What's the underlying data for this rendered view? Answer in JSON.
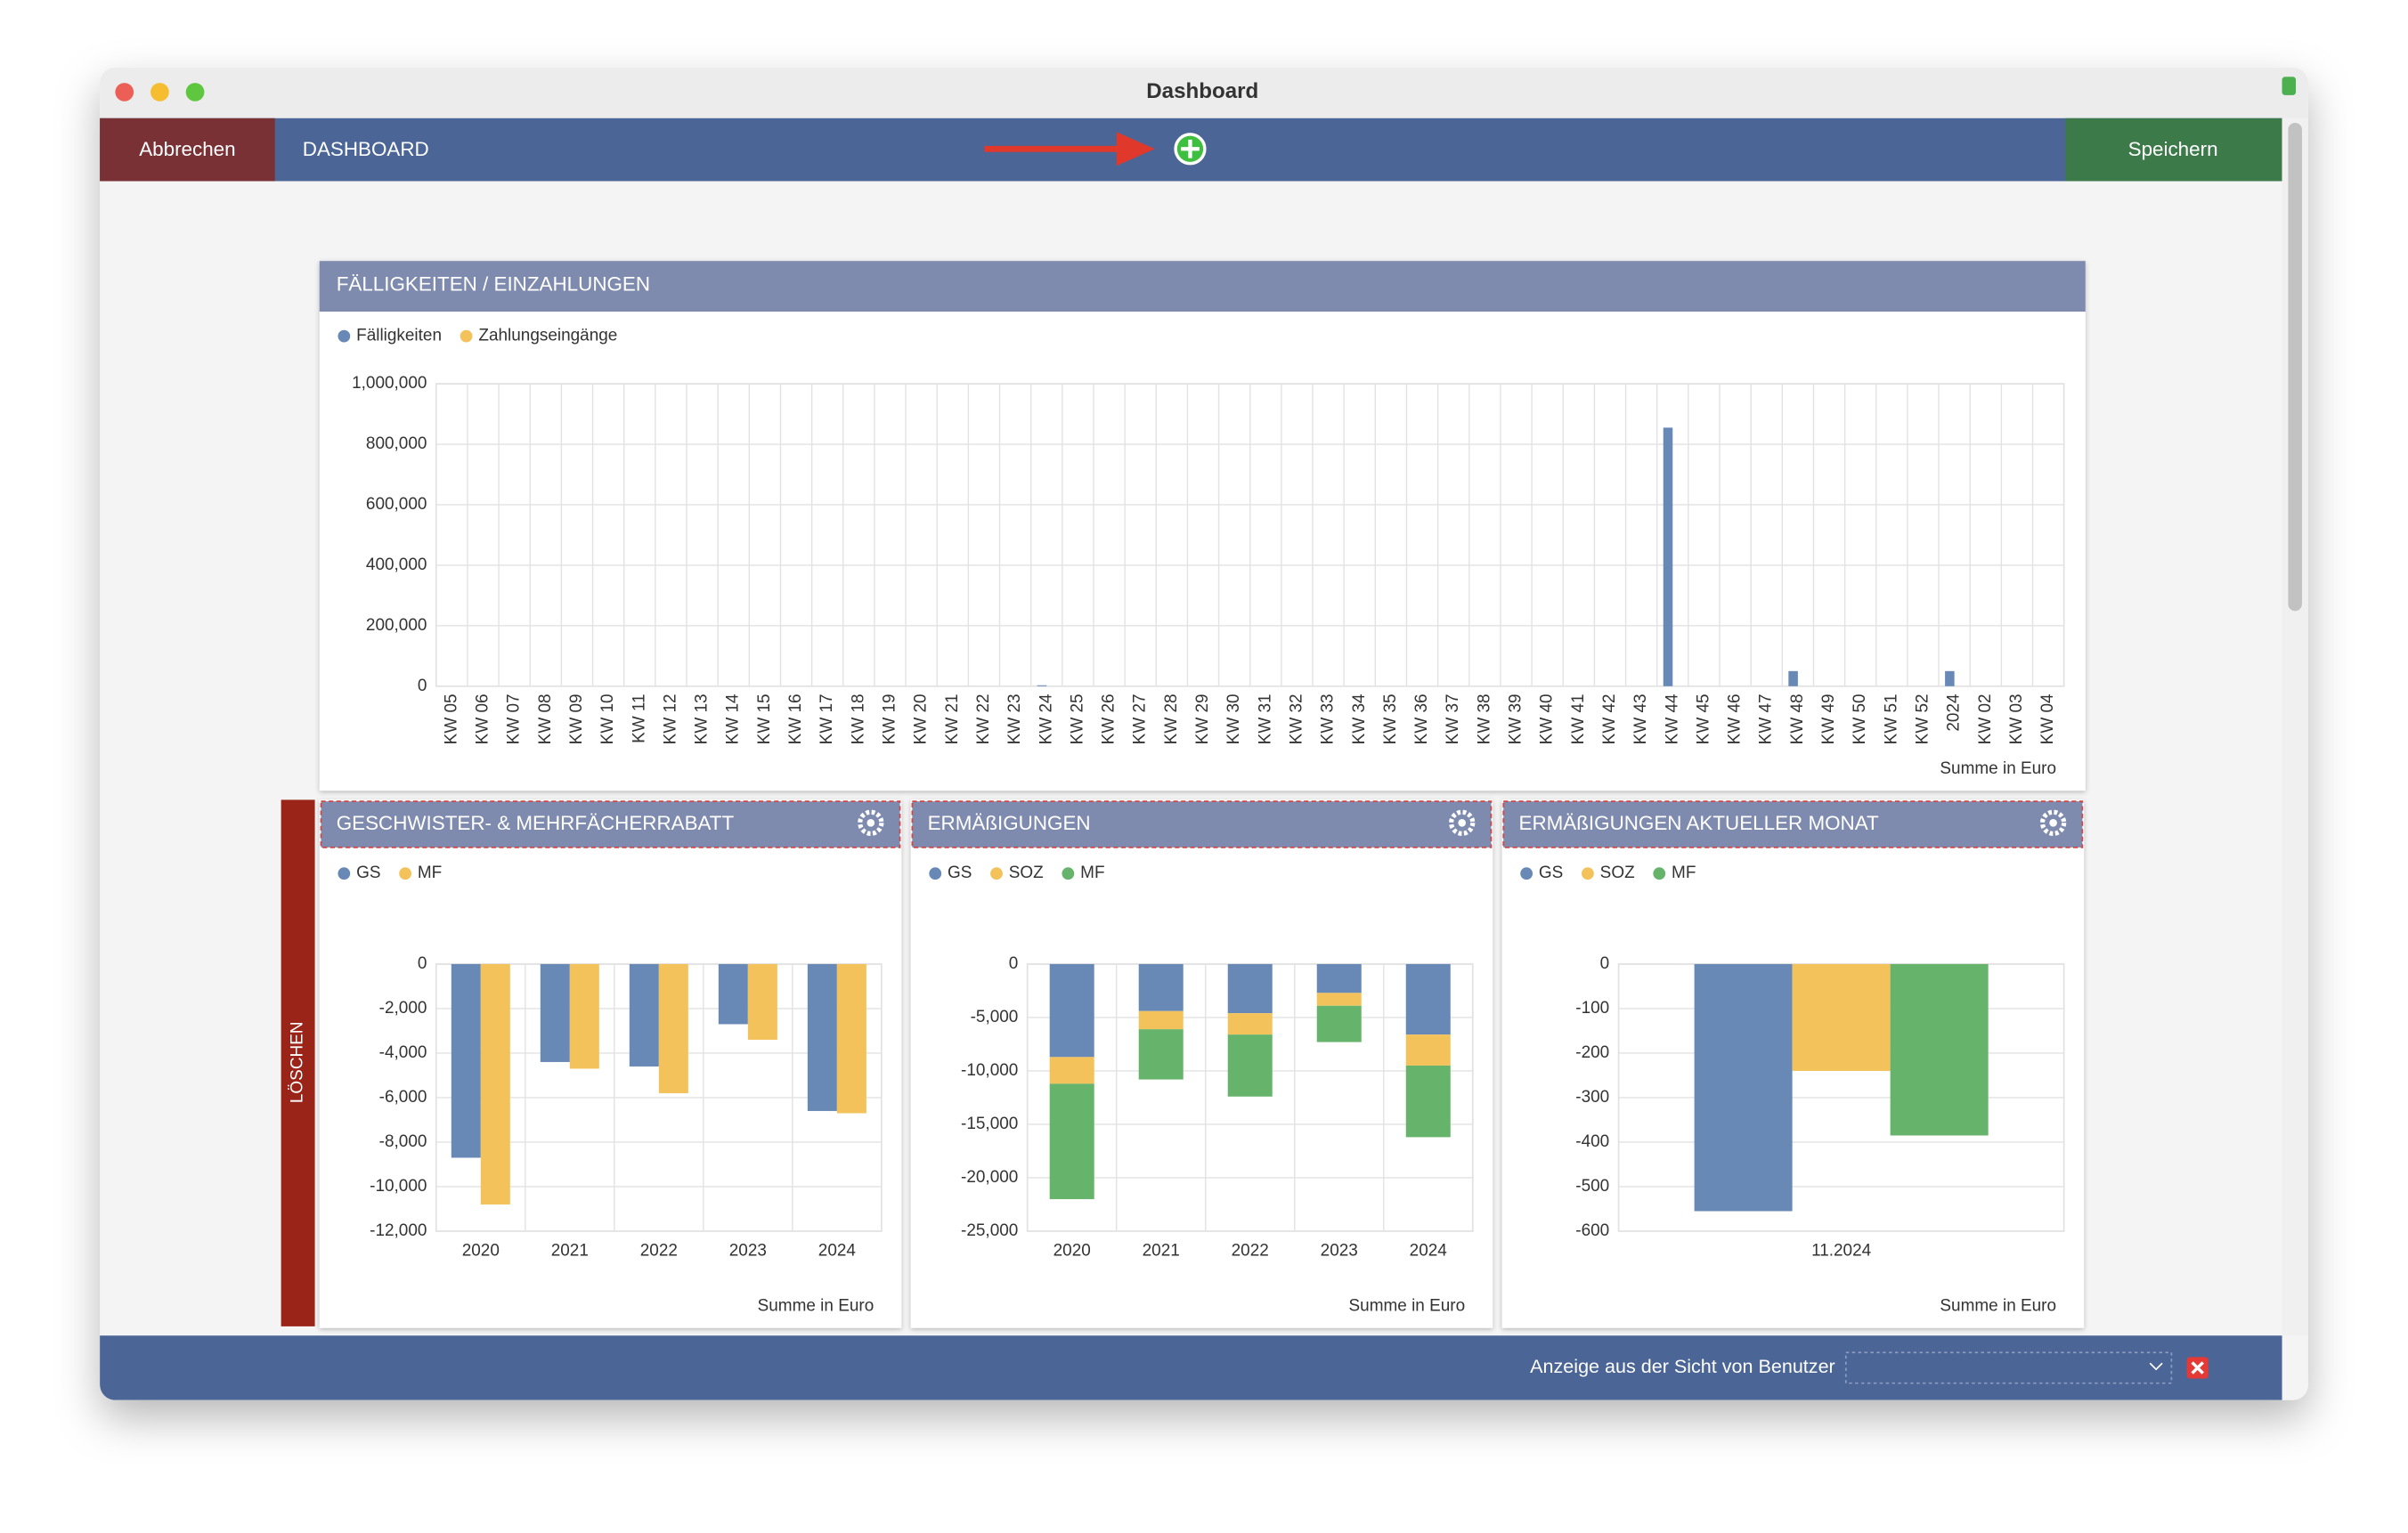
{
  "window": {
    "title": "Dashboard"
  },
  "toolbar": {
    "cancel": "Abbrechen",
    "section": "DASHBOARD",
    "save": "Speichern"
  },
  "delete_label": "LÖSCHEN",
  "footer": {
    "user_view": "Anzeige aus der Sicht von Benutzer"
  },
  "chart_data": [
    {
      "type": "bar",
      "title": "FÄLLIGKEITEN / EINZAHLUNGEN",
      "x_label": "Summe in Euro",
      "categories": [
        "KW 05",
        "KW 06",
        "KW 07",
        "KW 08",
        "KW 09",
        "KW 10",
        "KW 11",
        "KW 12",
        "KW 13",
        "KW 14",
        "KW 15",
        "KW 16",
        "KW 17",
        "KW 18",
        "KW 19",
        "KW 20",
        "KW 21",
        "KW 22",
        "KW 23",
        "KW 24",
        "KW 25",
        "KW 26",
        "KW 27",
        "KW 28",
        "KW 29",
        "KW 30",
        "KW 31",
        "KW 32",
        "KW 33",
        "KW 34",
        "KW 35",
        "KW 36",
        "KW 37",
        "KW 38",
        "KW 39",
        "KW 40",
        "KW 41",
        "KW 42",
        "KW 43",
        "KW 44",
        "KW 45",
        "KW 46",
        "KW 47",
        "KW 48",
        "KW 49",
        "KW 50",
        "KW 51",
        "KW 52",
        "2024",
        "KW 02",
        "KW 03",
        "KW 04"
      ],
      "series": [
        {
          "name": "Fälligkeiten",
          "color": "#6889b6",
          "values": [
            0,
            0,
            0,
            0,
            0,
            0,
            0,
            0,
            0,
            0,
            0,
            0,
            0,
            0,
            0,
            0,
            0,
            0,
            0,
            3000,
            0,
            0,
            0,
            0,
            0,
            0,
            0,
            0,
            0,
            0,
            0,
            0,
            0,
            0,
            0,
            0,
            0,
            0,
            0,
            855000,
            0,
            0,
            0,
            50000,
            0,
            0,
            0,
            0,
            50000,
            0,
            0,
            0
          ]
        },
        {
          "name": "Zahlungseingänge",
          "color": "#f3c25b",
          "values": [
            0,
            0,
            0,
            0,
            0,
            0,
            0,
            0,
            0,
            0,
            0,
            0,
            0,
            0,
            0,
            0,
            0,
            0,
            0,
            0,
            0,
            0,
            0,
            0,
            0,
            0,
            0,
            0,
            0,
            0,
            0,
            0,
            0,
            0,
            0,
            0,
            0,
            0,
            0,
            0,
            0,
            0,
            0,
            0,
            0,
            0,
            0,
            0,
            0,
            0,
            0,
            0
          ]
        }
      ],
      "ylim": [
        0,
        1000000
      ],
      "yticks": [
        0,
        {
          "value": 200000,
          "label": "200,000"
        },
        {
          "value": 400000,
          "label": "400,000"
        },
        {
          "value": 600000,
          "label": "600,000"
        },
        {
          "value": 800000,
          "label": "800,000"
        },
        {
          "value": 1000000,
          "label": "1,000,000"
        }
      ],
      "grid": true,
      "stacked": false
    },
    {
      "type": "bar",
      "title": "GESCHWISTER- & MEHRFÄCHERRABATT",
      "x_label": "Summe in Euro",
      "categories": [
        "2020",
        "2021",
        "2022",
        "2023",
        "2024"
      ],
      "series": [
        {
          "name": "GS",
          "color": "#6889b6",
          "values": [
            -8700,
            -4400,
            -4600,
            -2700,
            -6600
          ]
        },
        {
          "name": "MF",
          "color": "#f3c25b",
          "values": [
            -10800,
            -4700,
            -5800,
            -3400,
            -6700
          ]
        }
      ],
      "ylim": [
        -12000,
        0
      ],
      "yticks": [
        0,
        {
          "value": -2000,
          "label": "-2,000"
        },
        {
          "value": -4000,
          "label": "-4,000"
        },
        {
          "value": -6000,
          "label": "-6,000"
        },
        {
          "value": -8000,
          "label": "-8,000"
        },
        {
          "value": -10000,
          "label": "-10,000"
        },
        {
          "value": -12000,
          "label": "-12,000"
        }
      ],
      "grid": true,
      "stacked": false
    },
    {
      "type": "bar",
      "title": "ERMÄßIGUNGEN",
      "x_label": "Summe in Euro",
      "categories": [
        "2020",
        "2021",
        "2022",
        "2023",
        "2024"
      ],
      "series": [
        {
          "name": "GS",
          "color": "#6889b6",
          "values": [
            -8700,
            -4400,
            -4600,
            -2700,
            -6600
          ]
        },
        {
          "name": "SOZ",
          "color": "#f3c25b",
          "values": [
            -2500,
            -1700,
            -2000,
            -1200,
            -2900
          ]
        },
        {
          "name": "MF",
          "color": "#66b46b",
          "values": [
            -10800,
            -4700,
            -5800,
            -3400,
            -6700
          ]
        }
      ],
      "ylim": [
        -25000,
        0
      ],
      "yticks": [
        0,
        {
          "value": -5000,
          "label": "-5,000"
        },
        {
          "value": -10000,
          "label": "-10,000"
        },
        {
          "value": -15000,
          "label": "-15,000"
        },
        {
          "value": -20000,
          "label": "-20,000"
        },
        {
          "value": -25000,
          "label": "-25,000"
        }
      ],
      "grid": true,
      "stacked": true
    },
    {
      "type": "bar",
      "title": "ERMÄßIGUNGEN AKTUELLER MONAT",
      "x_label": "Summe in Euro",
      "categories": [
        "11.2024"
      ],
      "series": [
        {
          "name": "GS",
          "color": "#6889b6",
          "values": [
            -555
          ]
        },
        {
          "name": "SOZ",
          "color": "#f3c25b",
          "values": [
            -240
          ]
        },
        {
          "name": "MF",
          "color": "#66b46b",
          "values": [
            -385
          ]
        }
      ],
      "ylim": [
        -600,
        0
      ],
      "yticks": [
        0,
        -100,
        -200,
        -300,
        -400,
        -500,
        -600
      ],
      "grid": true,
      "stacked": false
    }
  ]
}
